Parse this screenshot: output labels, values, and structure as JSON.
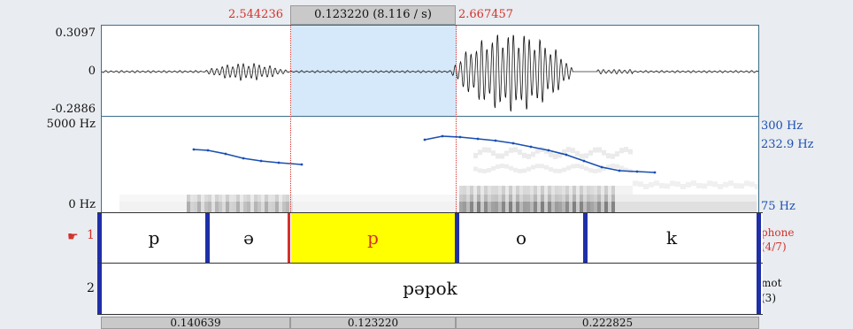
{
  "top_bar": {
    "left_time": "2.544236",
    "selection_duration": "0.123220 (8.116 / s)",
    "right_time": "2.667457"
  },
  "waveform": {
    "max_label": "0.3097",
    "zero_label": "0",
    "min_label": "-0.2886"
  },
  "spectrogram": {
    "freq_max_label": "5000 Hz",
    "freq_min_label": "0 Hz",
    "pitch_max_label": "300 Hz",
    "pitch_value_label": "232.9 Hz",
    "pitch_min_label": "75 Hz"
  },
  "tier1": {
    "number": "1",
    "pointer_icon": "hand-pointer-icon",
    "name": "phone",
    "count": "(4/7)",
    "intervals": [
      "p",
      "ə",
      "p",
      "o",
      "k"
    ],
    "selected_index": 2
  },
  "tier2": {
    "number": "2",
    "name": "mot",
    "count": "(3)",
    "text": "pəpok"
  },
  "bottom_bar": {
    "durations": [
      "0.140639",
      "0.123220",
      "0.222825"
    ]
  },
  "colors": {
    "selection": "#ffff00",
    "accent_red": "#d2322b",
    "boundary_blue": "#1f2fa8",
    "pitch_blue": "#1a4fb3"
  }
}
